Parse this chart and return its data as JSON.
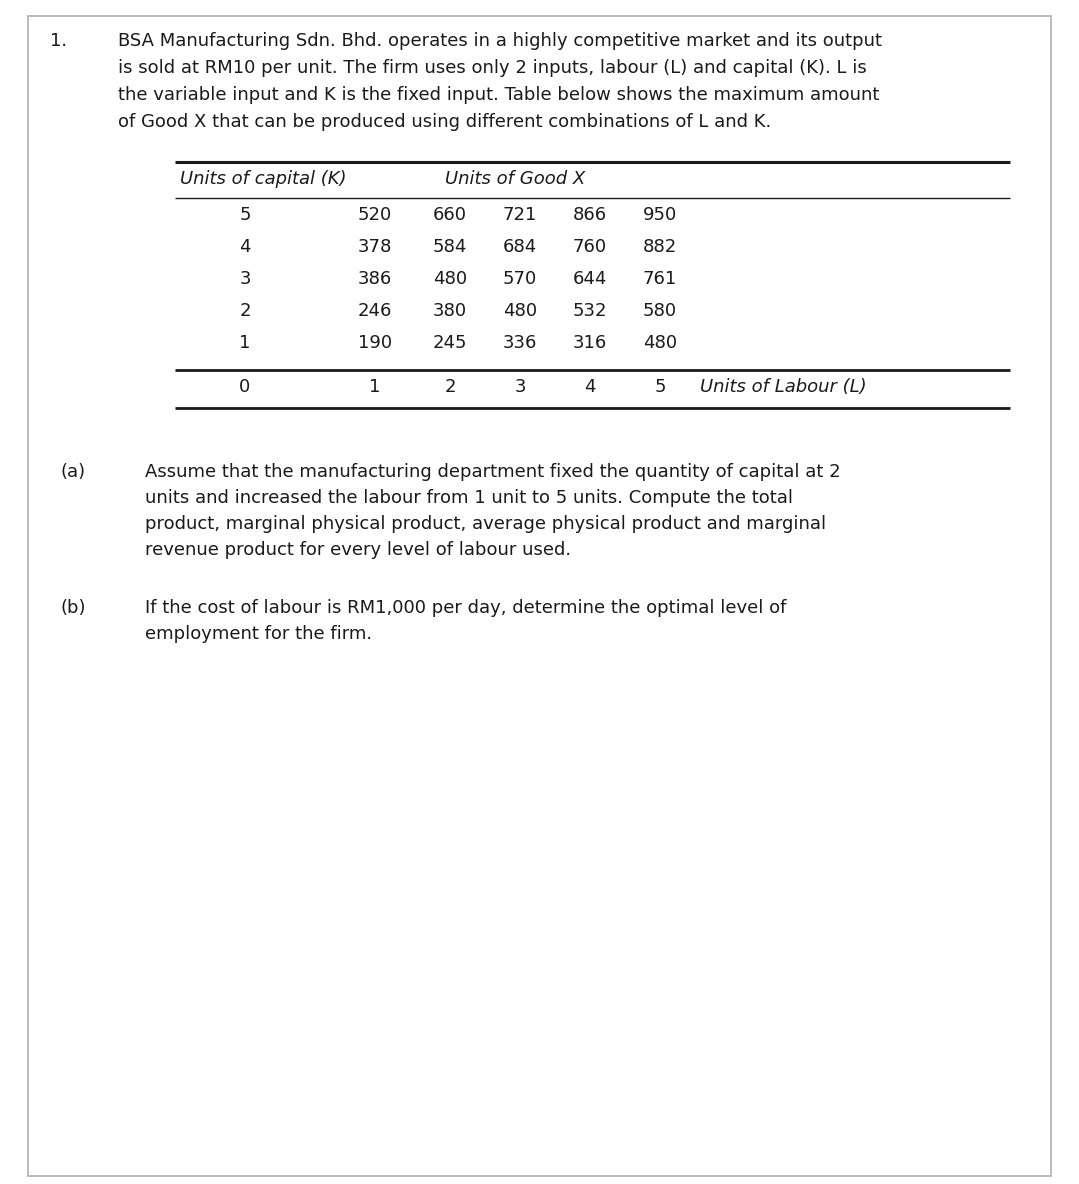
{
  "question_number": "1.",
  "intro_lines": [
    "BSA Manufacturing Sdn. Bhd. operates in a highly competitive market and its output",
    "is sold at RM10 per unit. The firm uses only 2 inputs, labour (L) and capital (K). L is",
    "the variable input and K is the fixed input. Table below shows the maximum amount",
    "of Good X that can be produced using different combinations of L and K."
  ],
  "table_header_left": "Units of capital (K)",
  "table_header_right": "Units of Good X",
  "table_data": {
    "5": [
      520,
      660,
      721,
      866,
      950
    ],
    "4": [
      378,
      584,
      684,
      760,
      882
    ],
    "3": [
      386,
      480,
      570,
      644,
      761
    ],
    "2": [
      246,
      380,
      480,
      532,
      580
    ],
    "1": [
      190,
      245,
      336,
      316,
      480
    ]
  },
  "labour_row_label": "0",
  "labour_values": [
    "1",
    "2",
    "3",
    "4",
    "5"
  ],
  "labour_axis_label": "Units of Labour (L)",
  "part_a_label": "(a)",
  "part_a_lines": [
    "Assume that the manufacturing department fixed the quantity of capital at 2",
    "units and increased the labour from 1 unit to 5 units. Compute the total",
    "product, marginal physical product, average physical product and marginal",
    "revenue product for every level of labour used."
  ],
  "part_b_label": "(b)",
  "part_b_lines": [
    "If the cost of labour is RM1,000 per day, determine the optimal level of",
    "employment for the firm."
  ],
  "bg_color": "#ffffff",
  "text_color": "#1a1a1a",
  "border_color": "#b0b0b0",
  "body_fontsize": 13.0,
  "table_fontsize": 13.0
}
